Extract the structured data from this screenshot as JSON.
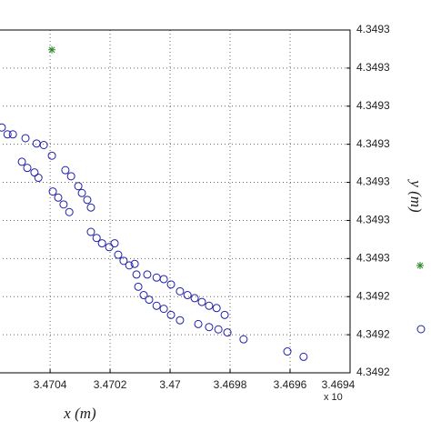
{
  "chart_data": {
    "type": "scatter",
    "xlabel": "x (m)",
    "ylabel": "y (m)",
    "x_exponent_label": "x 10",
    "xlim": [
      3.47057,
      3.4694
    ],
    "x_reversed": true,
    "xticks": [
      3.4704,
      3.4702,
      3.47,
      3.4698,
      3.4696,
      3.4694
    ],
    "ylim": [
      4.34924,
      4.349285
    ],
    "yticks": [
      {
        "value": 4.34924,
        "label": "4.3492"
      },
      {
        "value": 4.349245,
        "label": "4.3492"
      },
      {
        "value": 4.34925,
        "label": "4.3492"
      },
      {
        "value": 4.349255,
        "label": "4.3493"
      },
      {
        "value": 4.34926,
        "label": "4.3493"
      },
      {
        "value": 4.349265,
        "label": "4.3493"
      },
      {
        "value": 4.34927,
        "label": "4.3493"
      },
      {
        "value": 4.349275,
        "label": "4.3493"
      },
      {
        "value": 4.34928,
        "label": "4.3493"
      },
      {
        "value": 4.349285,
        "label": "4.3493"
      }
    ],
    "grid": true,
    "series": [
      {
        "color": "#1f1fa8",
        "marker": "circle",
        "x": [
          3.470561,
          3.470542,
          3.470524,
          3.470482,
          3.470445,
          3.470421,
          3.470394,
          3.470494,
          3.470476,
          3.470452,
          3.470439,
          3.470349,
          3.47033,
          3.470306,
          3.470294,
          3.470276,
          3.470264,
          3.470391,
          3.470373,
          3.470355,
          3.470336,
          3.470264,
          3.470245,
          3.470227,
          3.470203,
          3.470185,
          3.470173,
          3.470155,
          3.470136,
          3.470118,
          3.470112,
          3.470106,
          3.470088,
          3.47007,
          3.470045,
          3.470021,
          3.469997,
          3.469967,
          3.470076,
          3.470045,
          3.470021,
          3.469997,
          3.469967,
          3.469942,
          3.469918,
          3.469894,
          3.46987,
          3.469845,
          3.469818,
          3.469906,
          3.46987,
          3.469839,
          3.469809,
          3.469755,
          3.469609,
          3.469555
        ],
        "values": [
          4.3492722,
          4.3492713,
          4.3492713,
          4.3492708,
          4.3492701,
          4.3492699,
          4.3492685,
          4.3492677,
          4.3492669,
          4.3492663,
          4.3492656,
          4.3492666,
          4.3492658,
          4.3492645,
          4.3492636,
          4.3492627,
          4.3492617,
          4.3492638,
          4.349263,
          4.3492621,
          4.3492611,
          4.3492585,
          4.3492577,
          4.349257,
          4.3492565,
          4.349257,
          4.3492555,
          4.3492547,
          4.3492541,
          4.3492543,
          4.3492529,
          4.3492513,
          4.3492502,
          4.3492496,
          4.3492488,
          4.3492484,
          4.3492476,
          4.3492469,
          4.3492529,
          4.3492525,
          4.3492523,
          4.3492516,
          4.3492507,
          4.3492502,
          4.3492498,
          4.3492493,
          4.3492488,
          4.3492485,
          4.3492476,
          4.3492464,
          4.349246,
          4.3492457,
          4.3492453,
          4.3492444,
          4.3492428,
          4.3492421
        ]
      },
      {
        "color": "#2a8a2a",
        "marker": "star",
        "x": [
          3.470394
        ],
        "values": [
          4.3492824
        ]
      }
    ]
  }
}
